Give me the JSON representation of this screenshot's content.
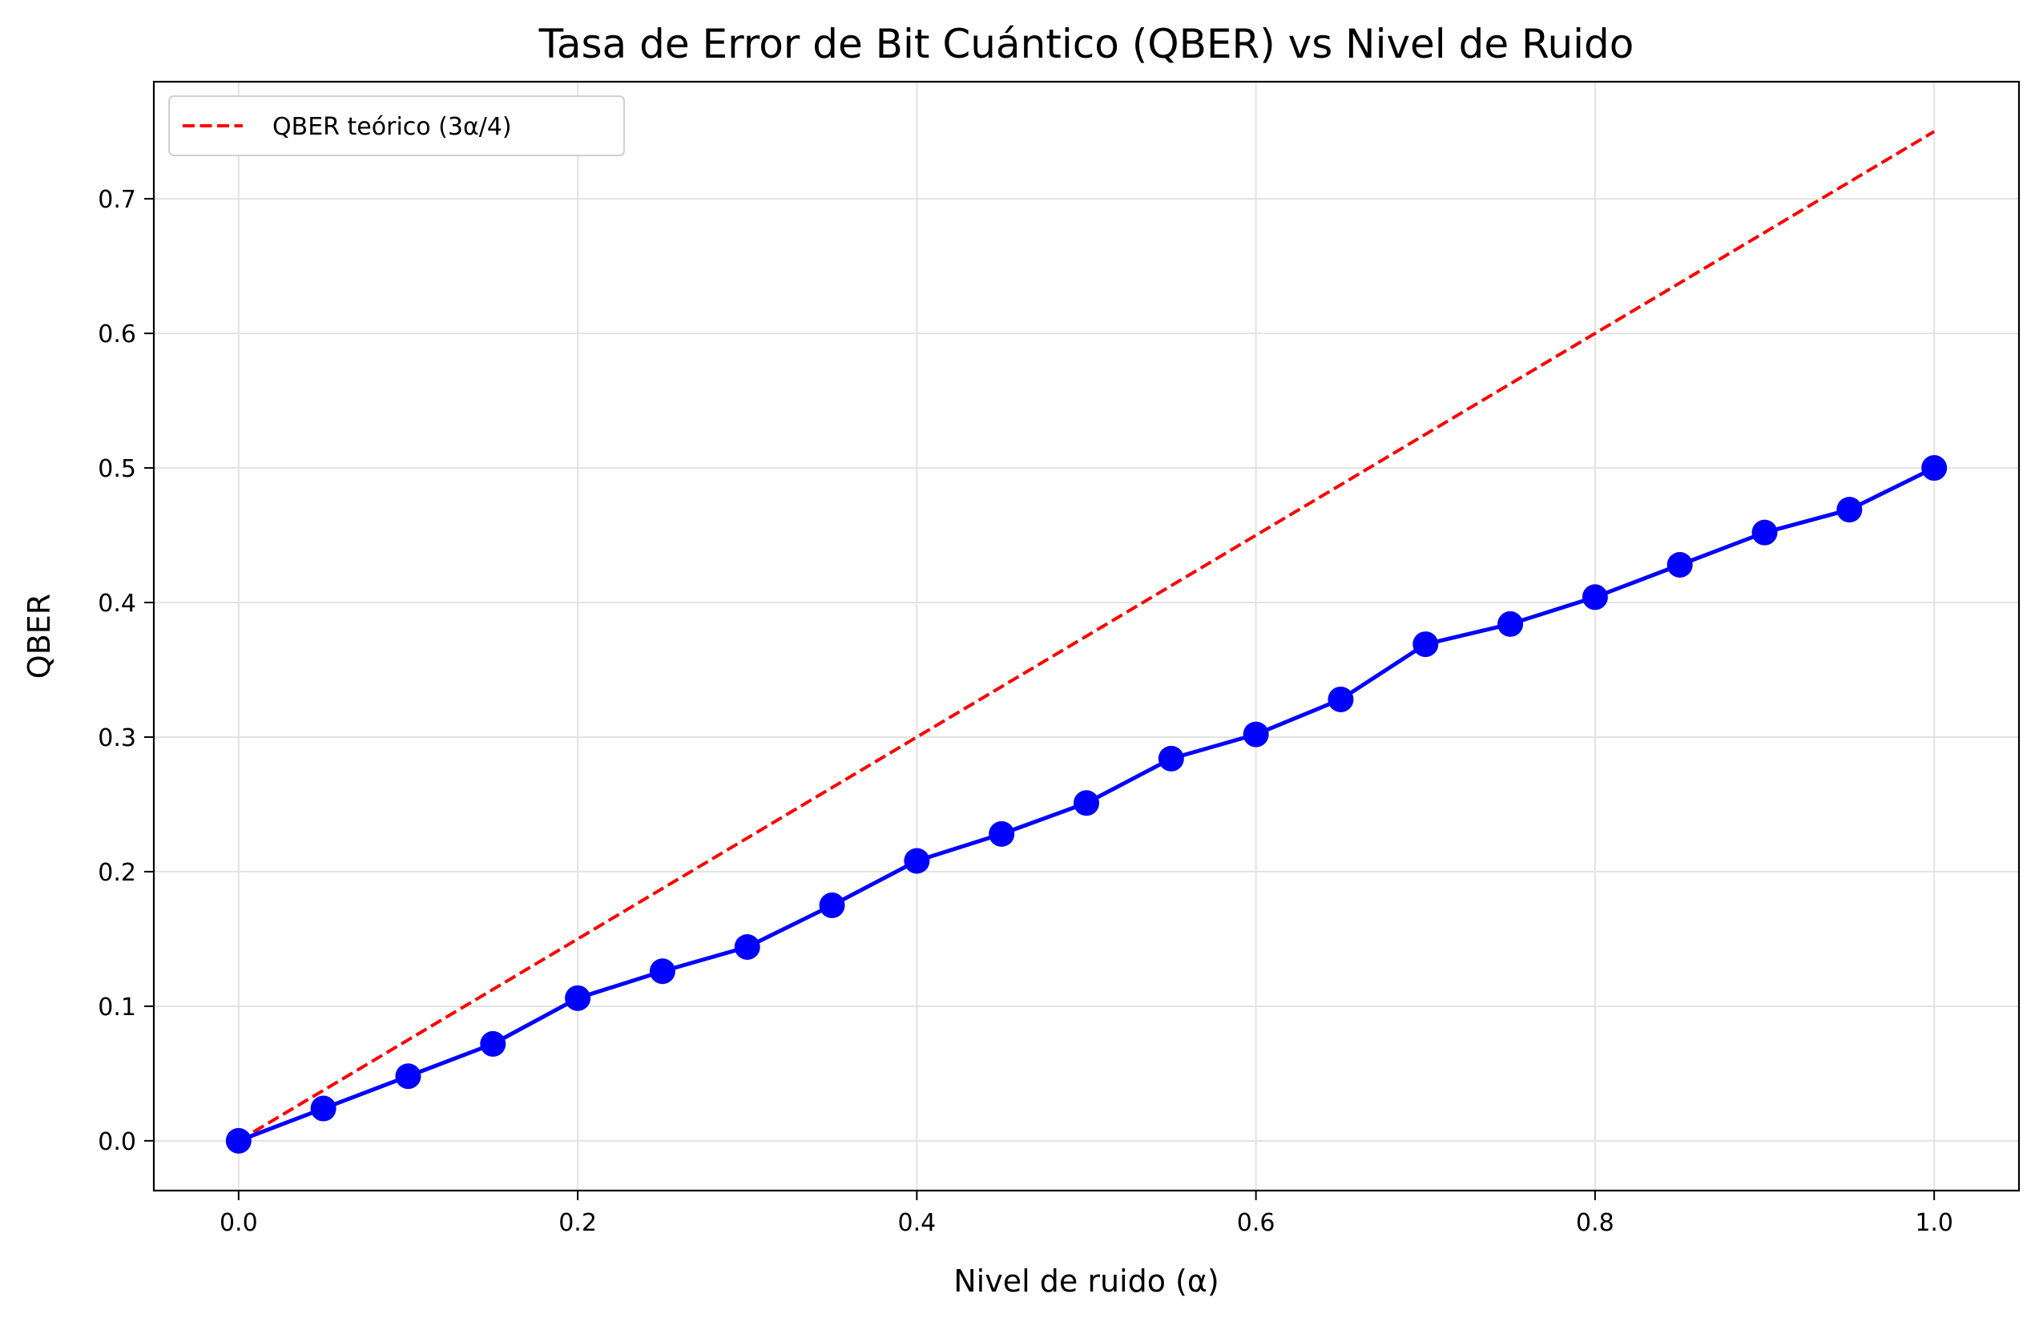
{
  "chart_data": {
    "type": "line",
    "title": "Tasa de Error de Bit Cuántico (QBER) vs Nivel de Ruido",
    "xlabel": "Nivel de ruido (α)",
    "ylabel": "QBER",
    "xlim": [
      -0.05,
      1.05
    ],
    "ylim": [
      -0.037,
      0.787
    ],
    "xticks": [
      0.0,
      0.2,
      0.4,
      0.6,
      0.8,
      1.0
    ],
    "xtick_labels": [
      "0.0",
      "0.2",
      "0.4",
      "0.6",
      "0.8",
      "1.0"
    ],
    "yticks": [
      0.0,
      0.1,
      0.2,
      0.3,
      0.4,
      0.5,
      0.6,
      0.7
    ],
    "ytick_labels": [
      "0.0",
      "0.1",
      "0.2",
      "0.3",
      "0.4",
      "0.5",
      "0.6",
      "0.7"
    ],
    "grid": true,
    "legend_position": "top-left",
    "series": [
      {
        "style": "solid-markers",
        "color": "#0000ff",
        "x": [
          0.0,
          0.05,
          0.1,
          0.15,
          0.2,
          0.25,
          0.3,
          0.35,
          0.4,
          0.45,
          0.5,
          0.55,
          0.6,
          0.65,
          0.7,
          0.75,
          0.8,
          0.85,
          0.9,
          0.95,
          1.0
        ],
        "y": [
          0.0,
          0.024,
          0.048,
          0.072,
          0.106,
          0.126,
          0.144,
          0.175,
          0.208,
          0.228,
          0.251,
          0.284,
          0.302,
          0.328,
          0.369,
          0.384,
          0.404,
          0.428,
          0.452,
          0.469,
          0.5
        ]
      },
      {
        "name": "QBER teórico (3α/4)",
        "style": "dashed",
        "color": "#ff0000",
        "x": [
          0.0,
          1.0
        ],
        "y": [
          0.0,
          0.75
        ]
      }
    ]
  }
}
